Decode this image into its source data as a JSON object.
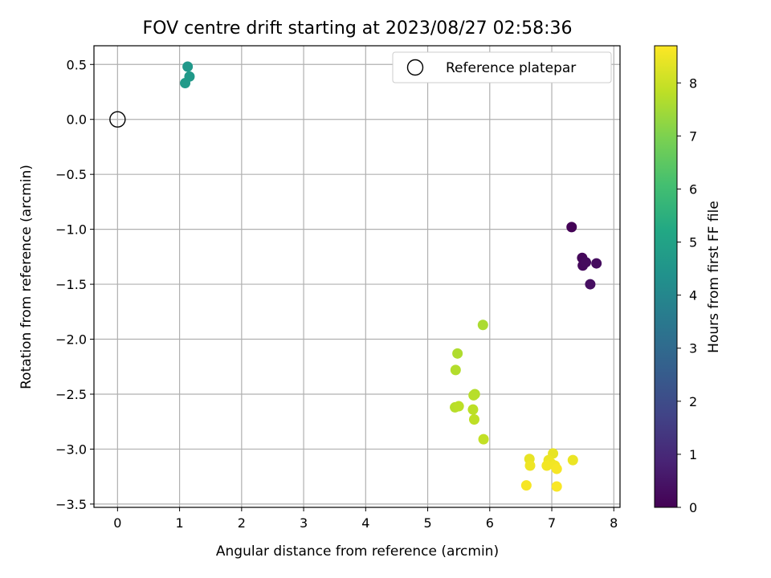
{
  "chart_data": {
    "type": "scatter",
    "title": "FOV centre drift starting at 2023/08/27 02:58:36",
    "xlabel": "Angular distance from reference (arcmin)",
    "ylabel": "Rotation from reference (arcmin)",
    "xlim": [
      -0.38,
      8.1
    ],
    "ylim": [
      -3.53,
      0.67
    ],
    "xticks": [
      0,
      1,
      2,
      3,
      4,
      5,
      6,
      7,
      8
    ],
    "yticks": [
      0.5,
      0.0,
      -0.5,
      -1.0,
      -1.5,
      -2.0,
      -2.5,
      -3.0,
      -3.5
    ],
    "ytick_labels": [
      "0.5",
      "0.0",
      "−0.5",
      "−1.0",
      "−1.5",
      "−2.0",
      "−2.5",
      "−3.0",
      "−3.5"
    ],
    "grid": true,
    "legend": {
      "placement": "top-right",
      "label": "Reference platepar"
    },
    "reference_point": {
      "x": 0.0,
      "y": 0.0,
      "marker": "open-circle"
    },
    "colorbar": {
      "label": "Hours from first FF file",
      "range": [
        0,
        8.7
      ],
      "ticks": [
        0,
        1,
        2,
        3,
        4,
        5,
        6,
        7,
        8
      ],
      "colormap": "viridis"
    },
    "points": [
      {
        "x": 7.32,
        "y": -0.98,
        "c": 0.05
      },
      {
        "x": 7.49,
        "y": -1.26,
        "c": 0.15
      },
      {
        "x": 7.5,
        "y": -1.33,
        "c": 0.2
      },
      {
        "x": 7.55,
        "y": -1.3,
        "c": 0.25
      },
      {
        "x": 7.72,
        "y": -1.31,
        "c": 0.3
      },
      {
        "x": 7.62,
        "y": -1.5,
        "c": 0.35
      },
      {
        "x": 1.13,
        "y": 0.48,
        "c": 4.6
      },
      {
        "x": 1.16,
        "y": 0.39,
        "c": 4.65
      },
      {
        "x": 1.09,
        "y": 0.33,
        "c": 4.7
      },
      {
        "x": 5.89,
        "y": -1.87,
        "c": 7.6
      },
      {
        "x": 5.48,
        "y": -2.13,
        "c": 7.65
      },
      {
        "x": 5.45,
        "y": -2.28,
        "c": 7.7
      },
      {
        "x": 5.76,
        "y": -2.5,
        "c": 7.7
      },
      {
        "x": 5.74,
        "y": -2.51,
        "c": 7.75
      },
      {
        "x": 5.44,
        "y": -2.62,
        "c": 7.75
      },
      {
        "x": 5.5,
        "y": -2.61,
        "c": 7.8
      },
      {
        "x": 5.73,
        "y": -2.64,
        "c": 7.8
      },
      {
        "x": 5.75,
        "y": -2.73,
        "c": 7.85
      },
      {
        "x": 5.9,
        "y": -2.91,
        "c": 7.9
      },
      {
        "x": 7.02,
        "y": -3.04,
        "c": 8.4
      },
      {
        "x": 6.64,
        "y": -3.09,
        "c": 8.4
      },
      {
        "x": 6.95,
        "y": -3.1,
        "c": 8.45
      },
      {
        "x": 7.34,
        "y": -3.1,
        "c": 8.45
      },
      {
        "x": 6.99,
        "y": -3.13,
        "c": 8.5
      },
      {
        "x": 6.65,
        "y": -3.15,
        "c": 8.5
      },
      {
        "x": 6.92,
        "y": -3.15,
        "c": 8.55
      },
      {
        "x": 7.05,
        "y": -3.15,
        "c": 8.55
      },
      {
        "x": 7.08,
        "y": -3.18,
        "c": 8.6
      },
      {
        "x": 6.59,
        "y": -3.33,
        "c": 8.6
      },
      {
        "x": 7.08,
        "y": -3.34,
        "c": 8.65
      }
    ]
  }
}
